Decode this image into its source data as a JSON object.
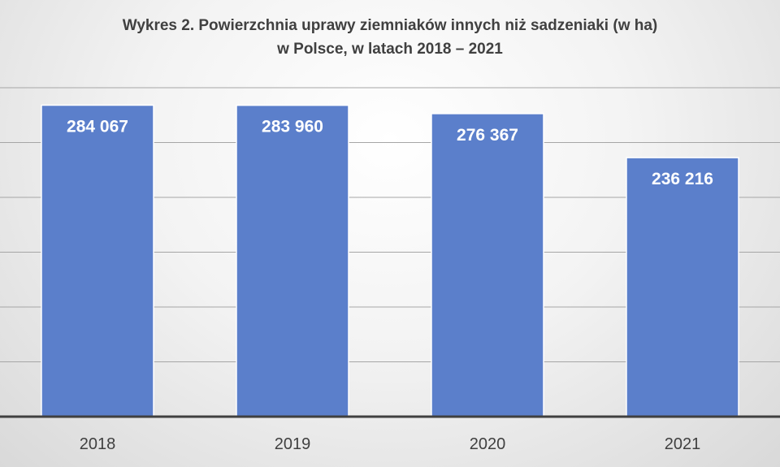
{
  "chart_data": {
    "type": "bar",
    "title": "Wykres 2. Powierzchnia uprawy ziemniaków innych niż sadzeniaki (w ha)",
    "subtitle": "w Polsce, w latach 2018 – 2021",
    "categories": [
      "2018",
      "2019",
      "2020",
      "2021"
    ],
    "values": [
      284067,
      283960,
      276367,
      236216
    ],
    "value_labels": [
      "284 067",
      "283 960",
      "276 367",
      "236 216"
    ],
    "ylim": [
      0,
      300000
    ],
    "grid": true,
    "bar_color": "#5b7fcb",
    "grid_color": "#a6a6a6",
    "axis_color": "#404040"
  }
}
